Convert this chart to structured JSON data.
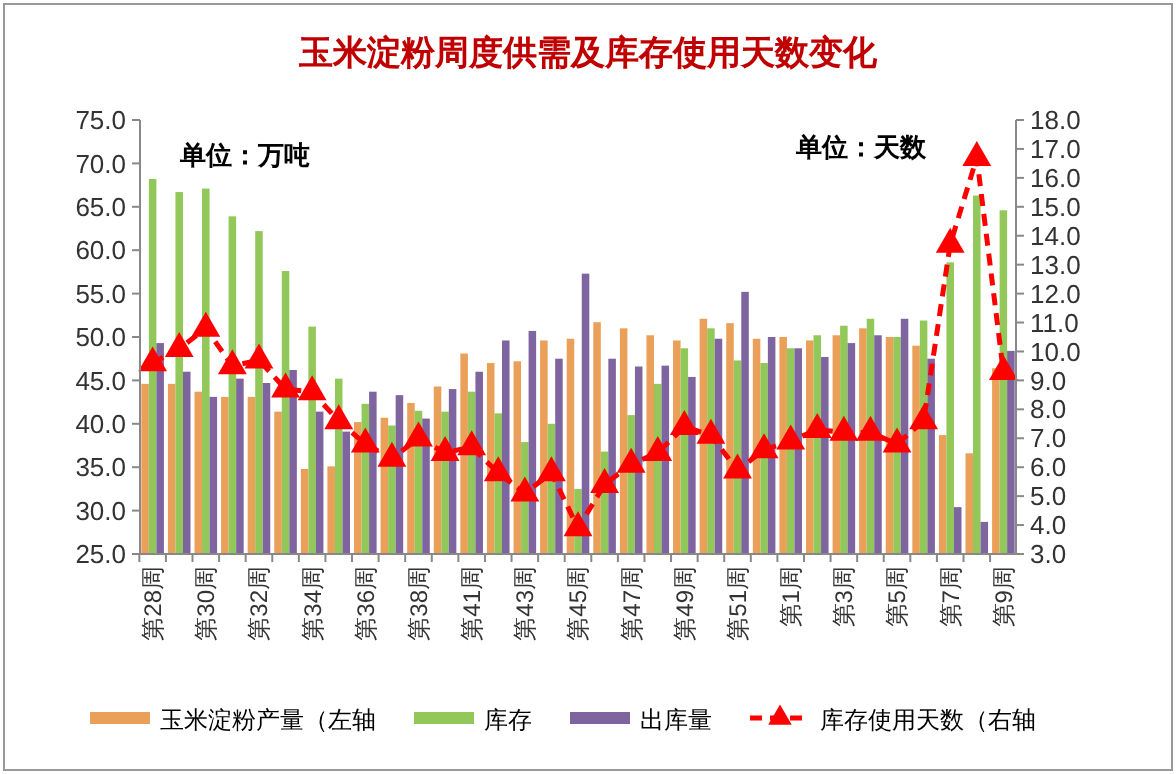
{
  "chart_data": {
    "type": "bar",
    "title": "玉米淀粉周度供需及库存使用天数变化",
    "categories": [
      "第28周",
      null,
      "第30周",
      null,
      "第32周",
      null,
      "第34周",
      null,
      "第36周",
      null,
      "第38周",
      null,
      "第41周",
      null,
      "第43周",
      null,
      "第45周",
      null,
      "第47周",
      null,
      "第49周",
      null,
      "第51周",
      null,
      "第1周",
      null,
      "第3周",
      null,
      "第5周",
      null,
      "第7周",
      null,
      "第9周"
    ],
    "series": [
      {
        "name": "玉米淀粉产量（左轴",
        "color": "#eba05a",
        "values": [
          44.6,
          44.6,
          43.7,
          43.1,
          43.1,
          41.4,
          34.8,
          35.1,
          40.2,
          40.7,
          42.4,
          44.3,
          48.1,
          47.0,
          47.2,
          49.6,
          49.8,
          51.7,
          51.0,
          50.2,
          49.6,
          52.1,
          51.6,
          49.8,
          50.0,
          49.6,
          50.2,
          51.0,
          50.0,
          49.0,
          38.7,
          36.6,
          46.4
        ]
      },
      {
        "name": "库存",
        "color": "#92c85a",
        "values": [
          68.2,
          66.7,
          67.1,
          63.9,
          62.2,
          57.6,
          51.2,
          45.2,
          42.3,
          39.8,
          41.5,
          41.4,
          43.7,
          41.2,
          37.9,
          40.0,
          32.5,
          36.8,
          41.0,
          44.6,
          48.7,
          51.0,
          47.3,
          47.0,
          48.7,
          50.2,
          51.3,
          52.1,
          50.0,
          51.9,
          58.6,
          66.3,
          64.6
        ]
      },
      {
        "name": "出库量",
        "color": "#7f65a0",
        "values": [
          49.3,
          46.0,
          43.1,
          45.2,
          44.7,
          46.2,
          41.4,
          39.1,
          43.7,
          43.3,
          40.6,
          44.0,
          46.0,
          49.6,
          50.7,
          47.5,
          57.3,
          47.5,
          46.6,
          46.7,
          45.4,
          49.8,
          55.2,
          50.0,
          48.7,
          47.7,
          49.3,
          50.2,
          52.1,
          47.5,
          30.4,
          28.7,
          48.4
        ]
      },
      {
        "name": "库存使用天数（右轴",
        "color": "#ff0000",
        "type": "line",
        "axis": "y2",
        "values": [
          9.6,
          10.1,
          10.8,
          9.5,
          9.7,
          8.7,
          8.6,
          7.6,
          6.8,
          6.3,
          7.0,
          6.5,
          6.7,
          5.8,
          5.1,
          5.8,
          3.9,
          5.4,
          6.1,
          6.5,
          7.4,
          7.1,
          5.9,
          6.6,
          6.9,
          7.3,
          7.2,
          7.2,
          6.8,
          7.6,
          13.7,
          16.7,
          9.3
        ]
      }
    ],
    "ylim": [
      25,
      75
    ],
    "yticks": [
      {
        "value": 25,
        "label": "25.0"
      },
      {
        "value": 30,
        "label": "30.0"
      },
      {
        "value": 35,
        "label": "35.0"
      },
      {
        "value": 40,
        "label": "40.0"
      },
      {
        "value": 45,
        "label": "45.0"
      },
      {
        "value": 50,
        "label": "50.0"
      },
      {
        "value": 55,
        "label": "55.0"
      },
      {
        "value": 60,
        "label": "60.0"
      },
      {
        "value": 65,
        "label": "65.0"
      },
      {
        "value": 70,
        "label": "70.0"
      },
      {
        "value": 75,
        "label": "75.0"
      }
    ],
    "y2lim": [
      3,
      18
    ],
    "y2ticks": [
      {
        "value": 3,
        "label": "3.0"
      },
      {
        "value": 4,
        "label": "4.0"
      },
      {
        "value": 5,
        "label": "5.0"
      },
      {
        "value": 6,
        "label": "6.0"
      },
      {
        "value": 7,
        "label": "7.0"
      },
      {
        "value": 8,
        "label": "8.0"
      },
      {
        "value": 9,
        "label": "9.0"
      },
      {
        "value": 10,
        "label": "10.0"
      },
      {
        "value": 11,
        "label": "11.0"
      },
      {
        "value": 12,
        "label": "12.0"
      },
      {
        "value": 13,
        "label": "13.0"
      },
      {
        "value": 14,
        "label": "14.0"
      },
      {
        "value": 15,
        "label": "15.0"
      },
      {
        "value": 16,
        "label": "16.0"
      },
      {
        "value": 17,
        "label": "17.0"
      },
      {
        "value": 18,
        "label": "18.0"
      }
    ],
    "annotations": [
      "单位：万吨",
      "单位：天数"
    ],
    "legend": "bottom",
    "grid": false,
    "marker": "triangle",
    "line_style": "dashed"
  }
}
